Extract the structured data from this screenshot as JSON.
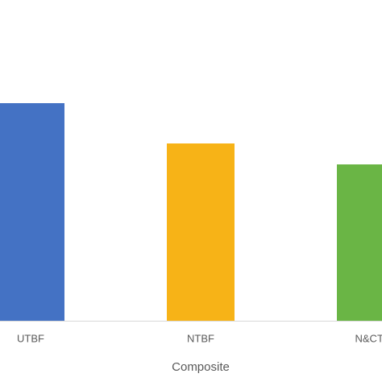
{
  "chart_data": {
    "type": "bar",
    "x_label": "Composite",
    "categories": [
      "UTBF",
      "NTBF",
      "N&CTI"
    ],
    "values": [
      270,
      220,
      194
    ],
    "colors": [
      "#4472c4",
      "#f7b317",
      "#6ab545"
    ],
    "ylim": [
      0,
      398
    ]
  }
}
